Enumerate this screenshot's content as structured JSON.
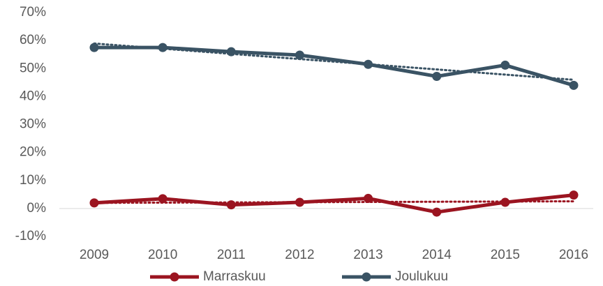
{
  "chart_data": {
    "type": "line",
    "x": [
      2009,
      2010,
      2011,
      2012,
      2013,
      2014,
      2015,
      2016
    ],
    "series": [
      {
        "name": "Marraskuu",
        "color": "#9b1420",
        "values": [
          2.0,
          3.5,
          1.3,
          2.2,
          3.6,
          -1.3,
          2.2,
          4.8
        ]
      },
      {
        "name": "Joulukuu",
        "color": "#3a5364",
        "values": [
          57.5,
          57.5,
          56.0,
          54.8,
          51.5,
          47.2,
          51.2,
          44.0
        ]
      }
    ],
    "ylim": [
      -10,
      70
    ],
    "yticks": [
      {
        "value": -10,
        "label": "-10%"
      },
      {
        "value": 0,
        "label": "0%"
      },
      {
        "value": 10,
        "label": "10%"
      },
      {
        "value": 20,
        "label": "20%"
      },
      {
        "value": 30,
        "label": "30%"
      },
      {
        "value": 40,
        "label": "40%"
      },
      {
        "value": 50,
        "label": "50%"
      },
      {
        "value": 60,
        "label": "60%"
      },
      {
        "value": 70,
        "label": "70%"
      }
    ],
    "trendline": true,
    "grid": false,
    "legend": "bottom"
  }
}
